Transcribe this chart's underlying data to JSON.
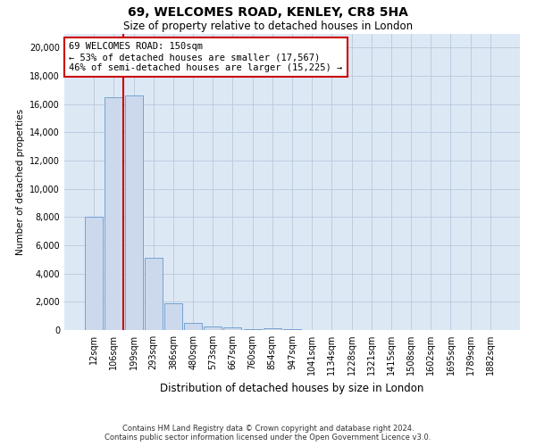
{
  "title": "69, WELCOMES ROAD, KENLEY, CR8 5HA",
  "subtitle": "Size of property relative to detached houses in London",
  "xlabel": "Distribution of detached houses by size in London",
  "ylabel": "Number of detached properties",
  "footnote1": "Contains HM Land Registry data © Crown copyright and database right 2024.",
  "footnote2": "Contains public sector information licensed under the Open Government Licence v3.0.",
  "property_label": "69 WELCOMES ROAD: 150sqm",
  "annotation_line1": "← 53% of detached houses are smaller (17,567)",
  "annotation_line2": "46% of semi-detached houses are larger (15,225) →",
  "bar_color": "#ccd9ed",
  "bar_edge_color": "#6699cc",
  "red_line_color": "#cc0000",
  "annotation_box_color": "#cc0000",
  "grid_color": "#b8c8dc",
  "bg_color": "#dde8f5",
  "categories": [
    "12sqm",
    "106sqm",
    "199sqm",
    "293sqm",
    "386sqm",
    "480sqm",
    "573sqm",
    "667sqm",
    "760sqm",
    "854sqm",
    "947sqm",
    "1041sqm",
    "1134sqm",
    "1228sqm",
    "1321sqm",
    "1415sqm",
    "1508sqm",
    "1602sqm",
    "1695sqm",
    "1789sqm",
    "1882sqm"
  ],
  "values": [
    8000,
    16500,
    16600,
    5100,
    1900,
    520,
    280,
    170,
    90,
    100,
    40,
    20,
    10,
    5,
    3,
    2,
    1,
    1,
    1,
    1,
    1
  ],
  "red_line_x": 1.47,
  "ylim": [
    0,
    21000
  ],
  "yticks": [
    0,
    2000,
    4000,
    6000,
    8000,
    10000,
    12000,
    14000,
    16000,
    18000,
    20000
  ],
  "title_fontsize": 10,
  "subtitle_fontsize": 8.5,
  "ylabel_fontsize": 7.5,
  "xlabel_fontsize": 8.5,
  "tick_fontsize": 7,
  "annotation_fontsize": 7.5,
  "footnote_fontsize": 6
}
